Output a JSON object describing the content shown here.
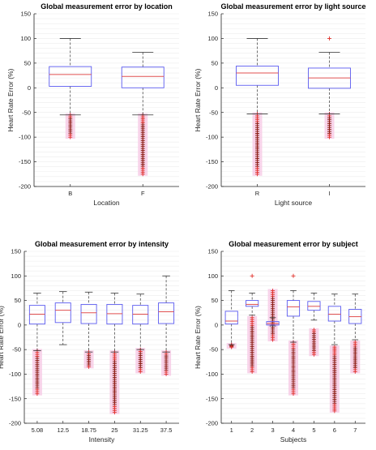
{
  "chart_data": [
    {
      "type": "box",
      "title": "Global measurement error by location",
      "xlabel": "Location",
      "ylabel": "Heart Rate Error (%)",
      "ylim": [
        -200,
        150
      ],
      "yticks": [
        150,
        100,
        50,
        0,
        -50,
        -100,
        -150,
        -200
      ],
      "categories": [
        "B",
        "F"
      ],
      "boxes": [
        {
          "whisker_low": -55,
          "q1": 3,
          "median": 27,
          "q3": 43,
          "whisker_high": 100,
          "outliers_from": -100,
          "outliers_to": -55
        },
        {
          "whisker_low": -55,
          "q1": 0,
          "median": 23,
          "q3": 42,
          "whisker_high": 72,
          "outliers_from": -175,
          "outliers_to": -55
        }
      ]
    },
    {
      "type": "box",
      "title": "Global measurement error by light source",
      "xlabel": "Light source",
      "ylabel": "Heart Rate Error (%)",
      "ylim": [
        -200,
        150
      ],
      "yticks": [
        150,
        100,
        50,
        0,
        -50,
        -100,
        -150,
        -200
      ],
      "categories": [
        "R",
        "I"
      ],
      "boxes": [
        {
          "whisker_low": -53,
          "q1": 5,
          "median": 30,
          "q3": 44,
          "whisker_high": 100,
          "outliers_from": -175,
          "outliers_to": -53
        },
        {
          "whisker_low": -53,
          "q1": -1,
          "median": 20,
          "q3": 40,
          "whisker_high": 72,
          "outliers_from": -100,
          "outliers_to": -53,
          "outlier_high": 100
        }
      ]
    },
    {
      "type": "box",
      "title": "Global measurement error by intensity",
      "xlabel": "Intensity",
      "ylabel": "Heart Rate Error (%)",
      "ylim": [
        -200,
        150
      ],
      "yticks": [
        150,
        100,
        50,
        0,
        -50,
        -100,
        -150,
        -200
      ],
      "categories": [
        "5.08",
        "12.5",
        "18.75",
        "25",
        "31.25",
        "37.5"
      ],
      "boxes": [
        {
          "whisker_low": -52,
          "q1": 2,
          "median": 22,
          "q3": 40,
          "whisker_high": 65,
          "outliers_from": -140,
          "outliers_to": -52
        },
        {
          "whisker_low": -40,
          "q1": 5,
          "median": 30,
          "q3": 45,
          "whisker_high": 68,
          "outliers_from": null,
          "outliers_to": null
        },
        {
          "whisker_low": -55,
          "q1": 3,
          "median": 25,
          "q3": 42,
          "whisker_high": 67,
          "outliers_from": -85,
          "outliers_to": -55
        },
        {
          "whisker_low": -55,
          "q1": 2,
          "median": 23,
          "q3": 42,
          "whisker_high": 65,
          "outliers_from": -178,
          "outliers_to": -55
        },
        {
          "whisker_low": -50,
          "q1": 2,
          "median": 22,
          "q3": 40,
          "whisker_high": 63,
          "outliers_from": -95,
          "outliers_to": -50
        },
        {
          "whisker_low": -55,
          "q1": 3,
          "median": 27,
          "q3": 45,
          "whisker_high": 100,
          "outliers_from": -100,
          "outliers_to": -55
        }
      ]
    },
    {
      "type": "box",
      "title": "Global measurement error by subject",
      "xlabel": "Subjects",
      "ylabel": "Heart Rate Error (%)",
      "ylim": [
        -200,
        150
      ],
      "yticks": [
        150,
        100,
        50,
        0,
        -50,
        -100,
        -150,
        -200
      ],
      "categories": [
        "1",
        "2",
        "3",
        "4",
        "5",
        "6",
        "7"
      ],
      "boxes": [
        {
          "whisker_low": -40,
          "q1": 2,
          "median": 8,
          "q3": 28,
          "whisker_high": 70,
          "outliers_from": -45,
          "outliers_to": -40
        },
        {
          "whisker_low": 20,
          "q1": 38,
          "median": 42,
          "q3": 50,
          "whisker_high": 65,
          "outliers_from": -95,
          "outliers_to": 15,
          "outlier_high": 100
        },
        {
          "whisker_low": -2,
          "q1": 0,
          "median": 3,
          "q3": 7,
          "whisker_high": 15,
          "outliers_from": -30,
          "outliers_to": 70
        },
        {
          "whisker_low": -35,
          "q1": 18,
          "median": 37,
          "q3": 50,
          "whisker_high": 70,
          "outliers_from": -140,
          "outliers_to": -35,
          "outlier_high": 100
        },
        {
          "whisker_low": 10,
          "q1": 30,
          "median": 38,
          "q3": 48,
          "whisker_high": 65,
          "outliers_from": -60,
          "outliers_to": -10
        },
        {
          "whisker_low": -40,
          "q1": 8,
          "median": 22,
          "q3": 38,
          "whisker_high": 63,
          "outliers_from": -175,
          "outliers_to": -45
        },
        {
          "whisker_low": -30,
          "q1": 3,
          "median": 17,
          "q3": 32,
          "whisker_high": 63,
          "outliers_from": -95,
          "outliers_to": -35
        }
      ]
    }
  ],
  "colors": {
    "box": "#5b5bf0",
    "median": "#e05050",
    "whisker": "#333333",
    "outlier": "#e0302a",
    "outlier_dense": "#8a1a10",
    "halo": "#f7cde6",
    "grid": "#ececec"
  }
}
